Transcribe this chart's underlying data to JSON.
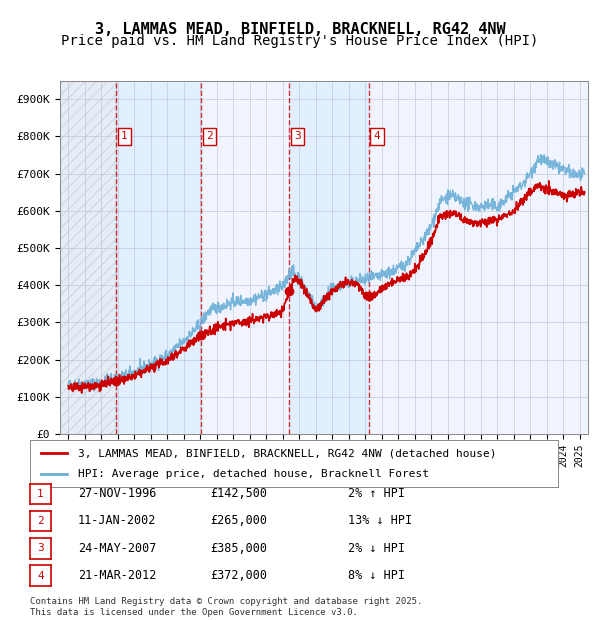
{
  "title1": "3, LAMMAS MEAD, BINFIELD, BRACKNELL, RG42 4NW",
  "title2": "Price paid vs. HM Land Registry's House Price Index (HPI)",
  "xlabel": "",
  "ylabel": "",
  "ylim": [
    0,
    950000
  ],
  "yticks": [
    0,
    100000,
    200000,
    300000,
    400000,
    500000,
    600000,
    700000,
    800000,
    900000
  ],
  "ytick_labels": [
    "£0",
    "£100K",
    "£200K",
    "£300K",
    "£400K",
    "£500K",
    "£600K",
    "£700K",
    "£800K",
    "£900K"
  ],
  "xlim_start": 1993.5,
  "xlim_end": 2025.5,
  "sale_dates": [
    1996.9,
    2002.05,
    2007.4,
    2012.2
  ],
  "sale_prices": [
    142500,
    265000,
    385000,
    372000
  ],
  "sale_labels": [
    "1",
    "2",
    "3",
    "4"
  ],
  "hpi_color": "#6baed6",
  "price_color": "#cc0000",
  "sale_dot_color": "#cc0000",
  "vline_color": "#cc0000",
  "shade_color": "#ddeeff",
  "grid_color": "#aaaacc",
  "bg_color": "#ffffff",
  "plot_bg_color": "#f0f4ff",
  "hatch_color": "#bbbbcc",
  "legend1": "3, LAMMAS MEAD, BINFIELD, BRACKNELL, RG42 4NW (detached house)",
  "legend2": "HPI: Average price, detached house, Bracknell Forest",
  "table_entries": [
    {
      "num": "1",
      "date": "27-NOV-1996",
      "price": "£142,500",
      "hpi": "2% ↑ HPI"
    },
    {
      "num": "2",
      "date": "11-JAN-2002",
      "price": "£265,000",
      "hpi": "13% ↓ HPI"
    },
    {
      "num": "3",
      "date": "24-MAY-2007",
      "price": "£385,000",
      "hpi": "2% ↓ HPI"
    },
    {
      "num": "4",
      "date": "21-MAR-2012",
      "price": "£372,000",
      "hpi": "8% ↓ HPI"
    }
  ],
  "footer": "Contains HM Land Registry data © Crown copyright and database right 2025.\nThis data is licensed under the Open Government Licence v3.0.",
  "title_fontsize": 11,
  "subtitle_fontsize": 10,
  "tick_fontsize": 8,
  "legend_fontsize": 8.5
}
